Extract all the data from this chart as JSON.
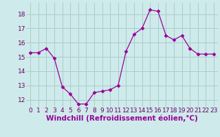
{
  "x": [
    0,
    1,
    2,
    3,
    4,
    5,
    6,
    7,
    8,
    9,
    10,
    11,
    12,
    13,
    14,
    15,
    16,
    17,
    18,
    19,
    20,
    21,
    22,
    23
  ],
  "y": [
    15.3,
    15.3,
    15.6,
    14.9,
    12.9,
    12.4,
    11.7,
    11.7,
    12.5,
    12.6,
    12.7,
    13.0,
    15.4,
    16.6,
    17.0,
    18.3,
    18.2,
    16.5,
    16.2,
    16.5,
    15.6,
    15.2,
    15.2,
    15.2
  ],
  "line_color": "#990099",
  "marker": "D",
  "marker_size": 2.5,
  "bg_color": "#ceeaea",
  "grid_color": "#aacccc",
  "xlabel": "Windchill (Refroidissement éolien,°C)",
  "xlabel_fontsize": 7.5,
  "tick_fontsize": 6.5,
  "ylim": [
    11.5,
    18.8
  ],
  "yticks": [
    12,
    13,
    14,
    15,
    16,
    17,
    18
  ],
  "xticks": [
    0,
    1,
    2,
    3,
    4,
    5,
    6,
    7,
    8,
    9,
    10,
    11,
    12,
    13,
    14,
    15,
    16,
    17,
    18,
    19,
    20,
    21,
    22,
    23
  ]
}
